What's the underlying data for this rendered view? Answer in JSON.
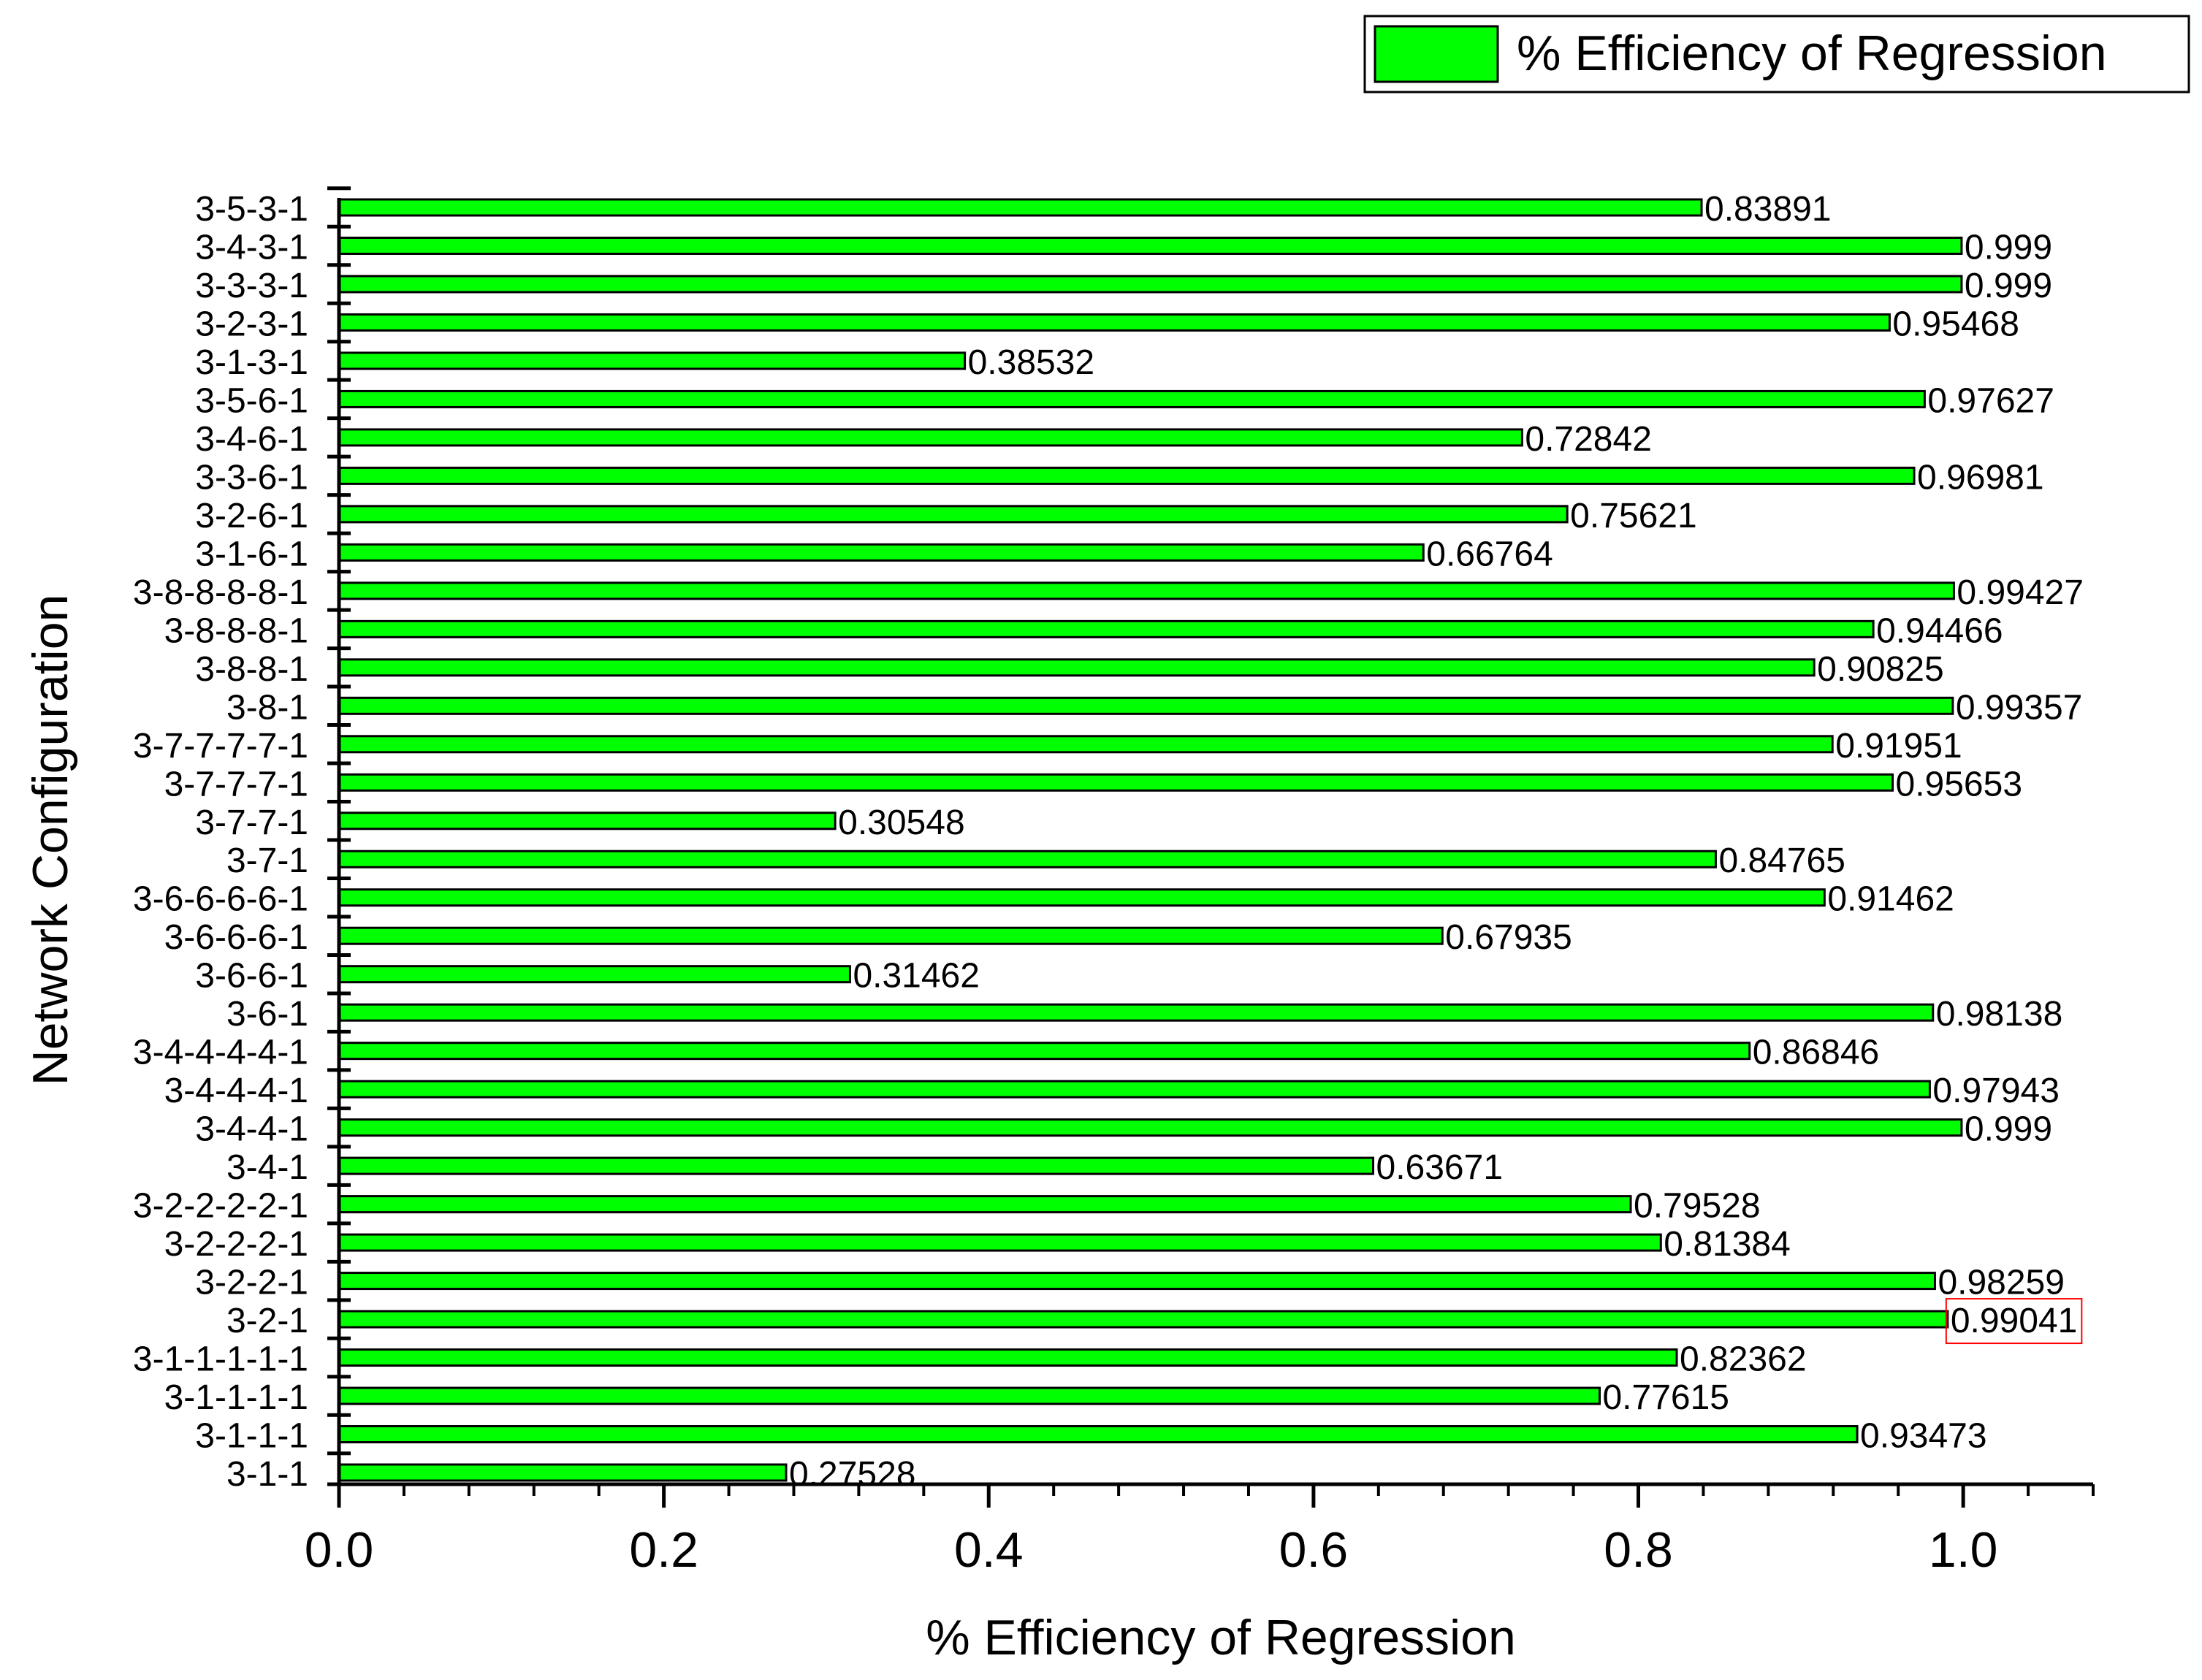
{
  "chart_data": {
    "type": "bar",
    "orientation": "horizontal",
    "title": "",
    "xlabel": "% Efficiency of Regression",
    "ylabel": "Network Configuration",
    "xlim": [
      0,
      1.08
    ],
    "xticks": [
      {
        "value": 0.0,
        "label": "0.0"
      },
      {
        "value": 0.2,
        "label": "0.2"
      },
      {
        "value": 0.4,
        "label": "0.4"
      },
      {
        "value": 0.6,
        "label": "0.6"
      },
      {
        "value": 0.8,
        "label": "0.8"
      },
      {
        "value": 1.0,
        "label": "1.0"
      }
    ],
    "xminor_step": 0.04,
    "grid": false,
    "legend": {
      "position": "top-right",
      "entries": [
        {
          "label": "% Efficiency of Regression",
          "color": "#00ff00"
        }
      ]
    },
    "categories": [
      "3-1-1",
      "3-1-1-1",
      "3-1-1-1-1",
      "3-1-1-1-1-1",
      "3-2-1",
      "3-2-2-1",
      "3-2-2-2-1",
      "3-2-2-2-2-1",
      "3-4-1",
      "3-4-4-1",
      "3-4-4-4-1",
      "3-4-4-4-4-1",
      "3-6-1",
      "3-6-6-1",
      "3-6-6-6-1",
      "3-6-6-6-6-1",
      "3-7-1",
      "3-7-7-1",
      "3-7-7-7-1",
      "3-7-7-7-7-1",
      "3-8-1",
      "3-8-8-1",
      "3-8-8-8-1",
      "3-8-8-8-8-1",
      "3-1-6-1",
      "3-2-6-1",
      "3-3-6-1",
      "3-4-6-1",
      "3-5-6-1",
      "3-1-3-1",
      "3-2-3-1",
      "3-3-3-1",
      "3-4-3-1",
      "3-5-3-1"
    ],
    "series": [
      {
        "name": "% Efficiency of Regression",
        "color": "#00ff00",
        "values": [
          0.27528,
          0.93473,
          0.77615,
          0.82362,
          0.99041,
          0.98259,
          0.81384,
          0.79528,
          0.63671,
          0.999,
          0.97943,
          0.86846,
          0.98138,
          0.31462,
          0.67935,
          0.91462,
          0.84765,
          0.30548,
          0.95653,
          0.91951,
          0.99357,
          0.90825,
          0.94466,
          0.99427,
          0.66764,
          0.75621,
          0.96981,
          0.72842,
          0.97627,
          0.38532,
          0.95468,
          0.999,
          0.999,
          0.83891
        ],
        "labels": [
          "0.27528",
          "0.93473",
          "0.77615",
          "0.82362",
          "0.99041",
          "0.98259",
          "0.81384",
          "0.79528",
          "0.63671",
          "0.999",
          "0.97943",
          "0.86846",
          "0.98138",
          "0.31462",
          "0.67935",
          "0.91462",
          "0.84765",
          "0.30548",
          "0.95653",
          "0.91951",
          "0.99357",
          "0.90825",
          "0.94466",
          "0.99427",
          "0.66764",
          "0.75621",
          "0.96981",
          "0.72842",
          "0.97627",
          "0.38532",
          "0.95468",
          "0.999",
          "0.999",
          "0.83891"
        ]
      }
    ],
    "highlight": {
      "category": "3-2-1",
      "label": "0.99041",
      "color": "#ff0000"
    }
  }
}
